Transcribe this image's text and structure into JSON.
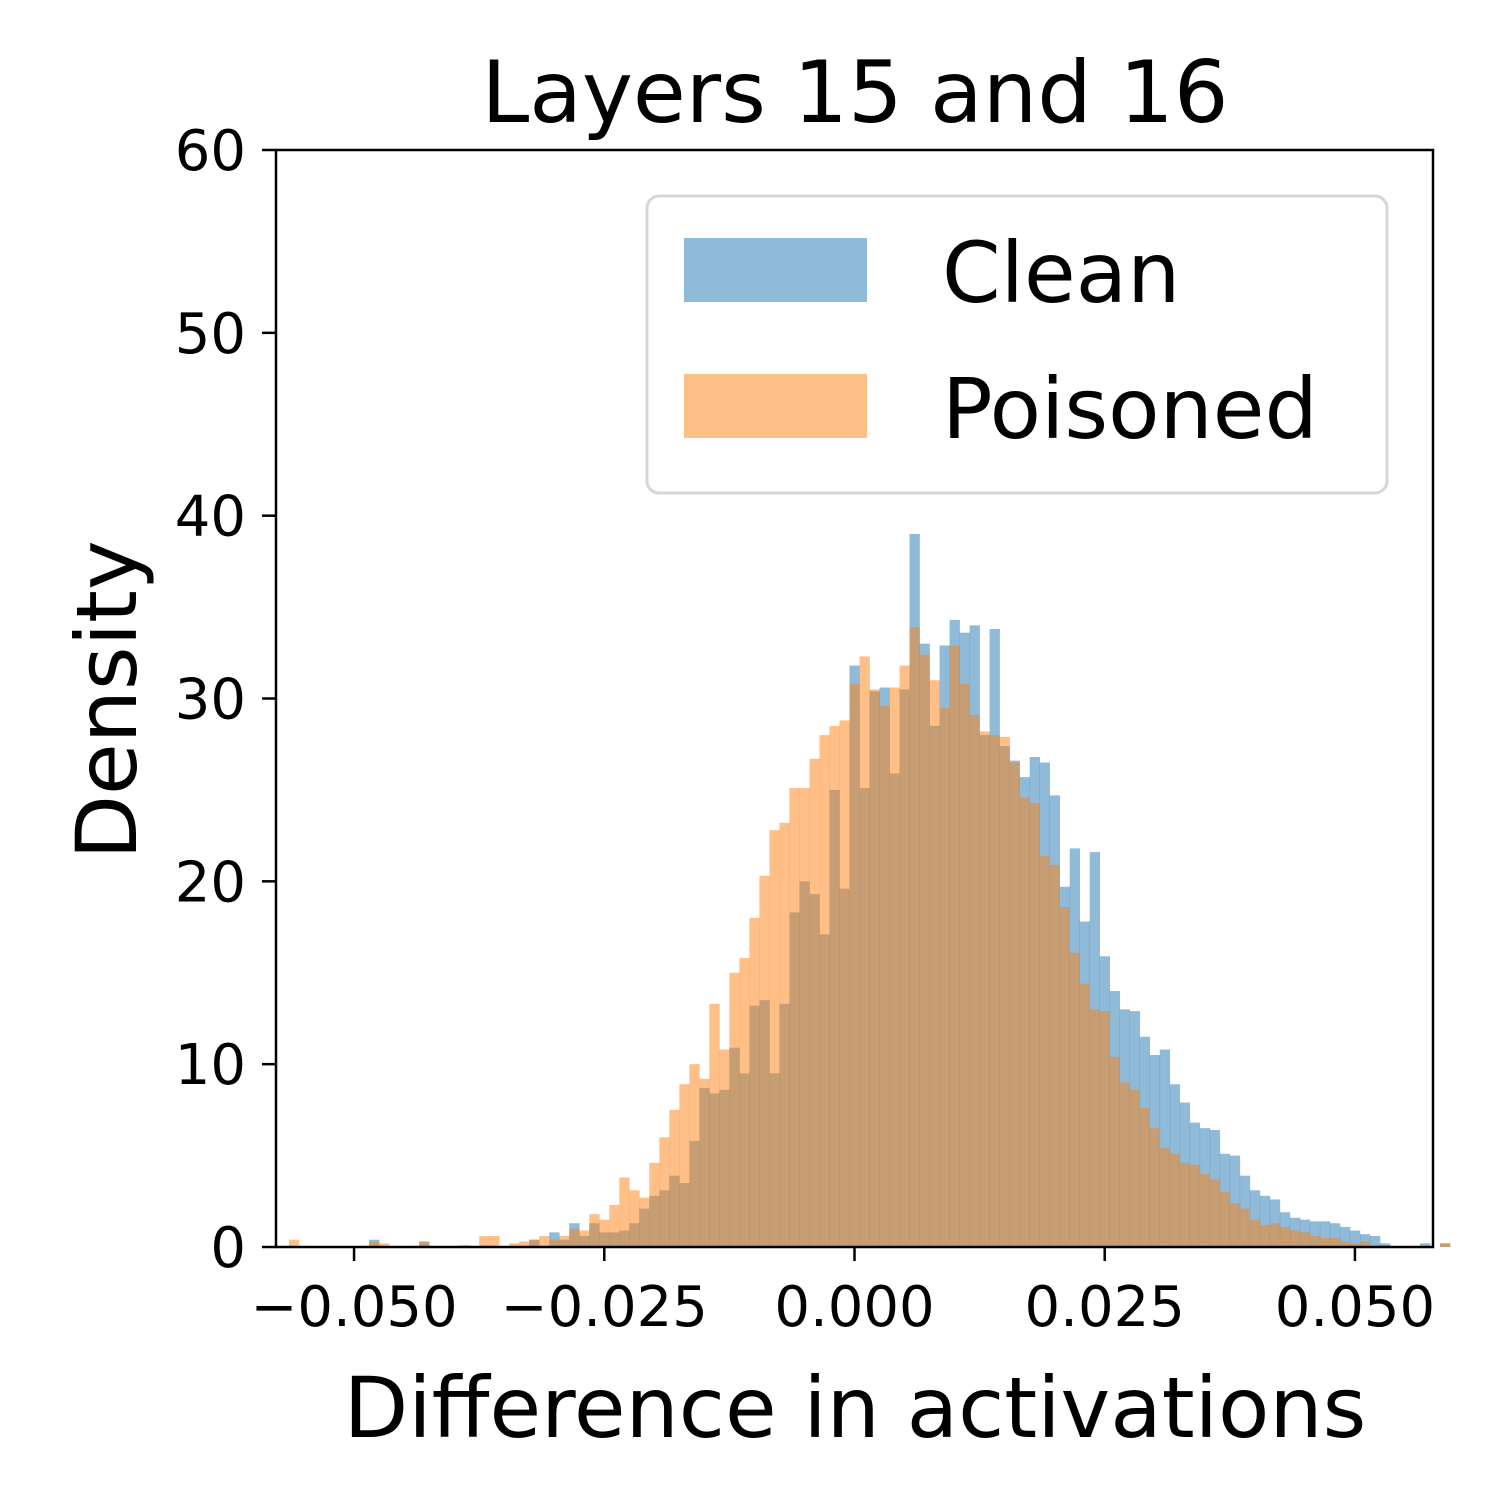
{
  "chart_data": {
    "type": "histogram",
    "title": "Layers 15 and 16",
    "xlabel": "Difference in activations",
    "ylabel": "Density",
    "xlim": [
      -0.0578,
      0.0578
    ],
    "ylim": [
      0,
      60
    ],
    "x_ticks": [
      -0.05,
      -0.025,
      0.0,
      0.025,
      0.05
    ],
    "x_tick_labels": [
      "−0.050",
      "−0.025",
      "0.000",
      "0.025",
      "0.050"
    ],
    "y_ticks": [
      0,
      10,
      20,
      30,
      40,
      50,
      60
    ],
    "y_tick_labels": [
      "0",
      "10",
      "20",
      "30",
      "40",
      "50",
      "60"
    ],
    "legend_position": "upper right",
    "grid": false,
    "bar_alpha": 0.5,
    "series": [
      {
        "name": "Clean",
        "color": "#1f77b4",
        "bin_start": -0.0585,
        "bin_width": 0.001,
        "values": [
          0,
          0,
          0,
          0,
          0,
          0,
          0,
          0,
          0,
          0,
          0.4,
          0,
          0,
          0,
          0,
          0.3,
          0,
          0,
          0,
          0,
          0,
          0,
          0,
          0,
          0,
          0,
          0.4,
          0,
          0.8,
          0.4,
          1.3,
          0.6,
          1.3,
          0.8,
          0.8,
          0.9,
          1.3,
          2.1,
          2.8,
          3.1,
          3.9,
          3.5,
          5.8,
          8.7,
          8.4,
          8.6,
          10.9,
          9.5,
          13.2,
          13.5,
          9.5,
          13.3,
          18.3,
          20,
          19.3,
          17.1,
          25,
          19.6,
          31.8,
          25.1,
          30.4,
          30.6,
          25.9,
          30.5,
          39,
          33,
          28.5,
          32.9,
          34.3,
          33.6,
          34,
          28,
          33.8,
          27.4,
          26.6,
          25.7,
          26.8,
          26.5,
          24.7,
          19.7,
          21.8,
          17.8,
          21.6,
          15.9,
          14,
          13,
          12.9,
          11.5,
          10.5,
          10.8,
          8.9,
          7.9,
          6.8,
          6.5,
          6.4,
          5.1,
          5,
          3.9,
          3.1,
          2.8,
          2.6,
          1.9,
          1.6,
          1.5,
          1.4,
          1.4,
          1.3,
          1.1,
          0.9,
          0.7,
          0.6,
          0.2,
          0,
          0,
          0,
          0.2,
          0,
          0.2,
          0,
          0,
          0,
          0,
          0,
          0,
          0,
          0,
          0,
          0,
          0,
          0,
          0
        ]
      },
      {
        "name": "Poisoned",
        "color": "#ff7f0e",
        "bin_start": -0.0585,
        "bin_width": 0.001,
        "values": [
          0,
          0,
          0.4,
          0,
          0,
          0,
          0,
          0,
          0,
          0,
          0.3,
          0.2,
          0,
          0,
          0,
          0.3,
          0,
          0,
          0,
          0.1,
          0,
          0.6,
          0.6,
          0,
          0.2,
          0.3,
          0.4,
          0.6,
          0.4,
          0.6,
          1,
          0.9,
          1.8,
          1.5,
          2.3,
          3.8,
          3.1,
          2.7,
          4.6,
          6,
          7.5,
          8.9,
          10,
          9.2,
          13.3,
          10.8,
          15,
          15.8,
          18,
          20.3,
          22.8,
          23.2,
          25.1,
          25.1,
          26.7,
          28,
          28.5,
          28.8,
          30.8,
          32.3,
          30.5,
          29.6,
          30.6,
          31.8,
          33.9,
          32.4,
          31,
          29.5,
          32.9,
          30.8,
          29.1,
          28.2,
          28,
          27.9,
          26.5,
          24.6,
          24.3,
          21.4,
          20.9,
          18.6,
          16.1,
          14.4,
          13,
          12.9,
          10.4,
          9,
          8.6,
          7.6,
          6.5,
          5.4,
          5.1,
          4.6,
          4.5,
          4,
          3.7,
          3,
          2.4,
          2.1,
          1.5,
          1.2,
          1.3,
          1.1,
          0.9,
          0.8,
          0.6,
          0.5,
          0.5,
          0.3,
          0.2,
          0.3,
          0,
          0.1,
          0,
          0,
          0,
          0,
          0,
          0.2,
          0,
          0,
          0,
          0,
          0,
          0,
          0,
          0,
          0,
          0,
          0,
          0,
          0
        ]
      }
    ]
  }
}
